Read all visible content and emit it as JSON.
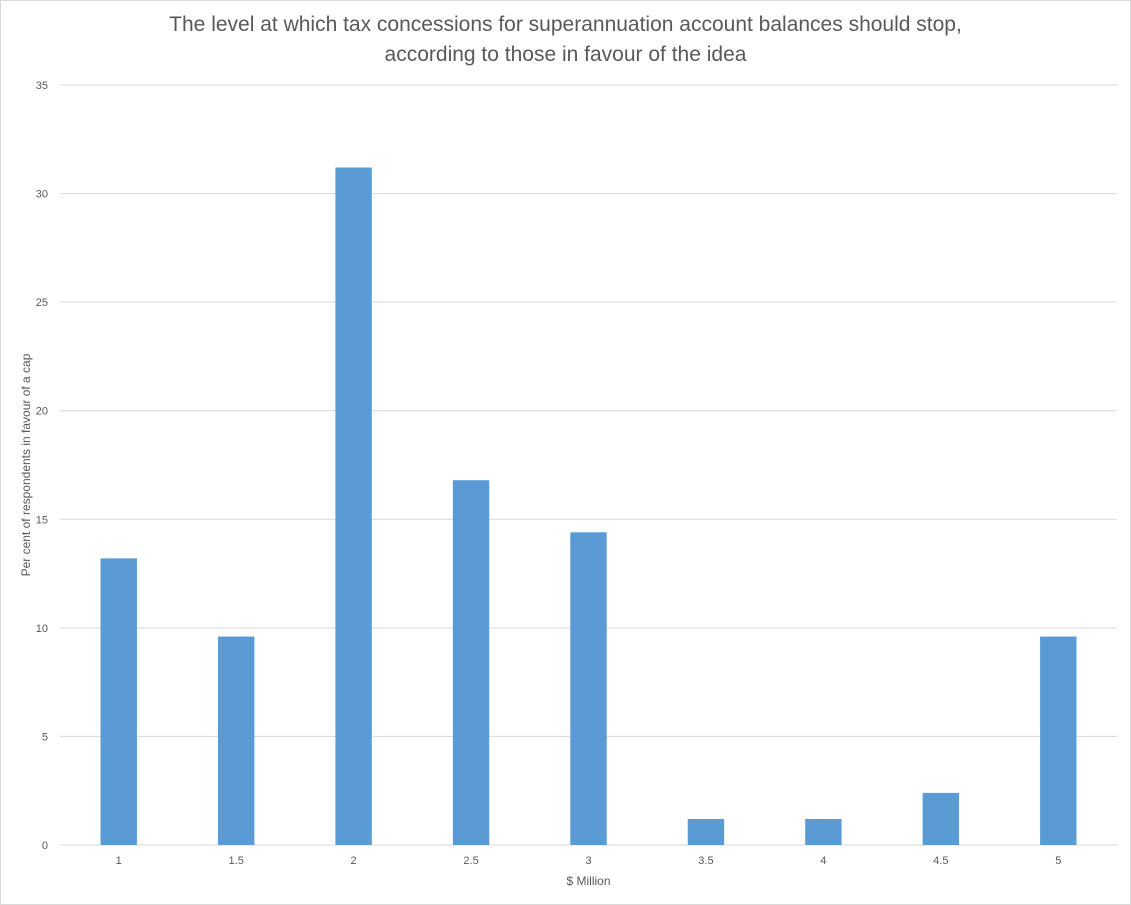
{
  "chart_data": {
    "type": "bar",
    "title_lines": [
      "The level at which tax concessions for superannuation account balances should stop,",
      "according to those in favour of the idea"
    ],
    "xlabel": "$ Million",
    "ylabel": "Per cent of respondents in favour of a cap",
    "categories": [
      "1",
      "1.5",
      "2",
      "2.5",
      "3",
      "3.5",
      "4",
      "4.5",
      "5"
    ],
    "values": [
      13.2,
      9.6,
      31.2,
      16.8,
      14.4,
      1.2,
      1.2,
      2.4,
      9.6
    ],
    "ylim": [
      0,
      35
    ],
    "yticks": [
      "0",
      "5",
      "10",
      "15",
      "20",
      "25",
      "30",
      "35"
    ],
    "grid": true,
    "legend": "none",
    "bar_color": "#5b9bd5",
    "grid_color": "#d9d9d9"
  }
}
